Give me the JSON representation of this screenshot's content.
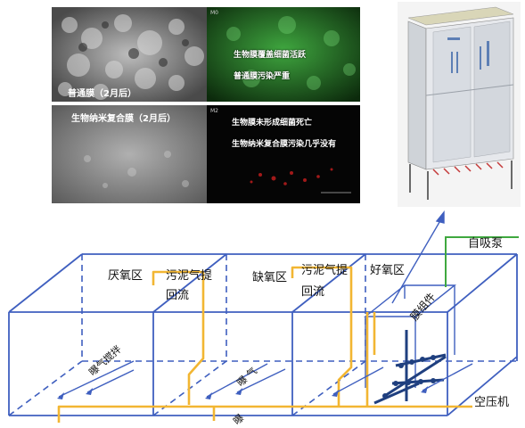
{
  "panels": {
    "sem_top": {
      "caption": "普通膜（2月后）"
    },
    "fluor_top": {
      "tag": "M0",
      "lines": [
        "生物膜覆盖细菌活跃",
        "普通膜污染严重"
      ]
    },
    "sem_bottom": {
      "caption": "生物纳米复合膜（2月后）"
    },
    "fluor_bottom": {
      "tag": "M2",
      "lines": [
        "生物膜未形成细菌死亡",
        "生物纳米复合膜污染几乎没有"
      ]
    }
  },
  "diagram": {
    "zones": [
      "厌氧区",
      "缺氧区",
      "好氧区"
    ],
    "reflux_labels": [
      {
        "line1": "污泥气提",
        "line2": "回流"
      },
      {
        "line1": "污泥气提",
        "line2": "回流"
      }
    ],
    "aeration_label_1": "曝气搅拌",
    "aeration_label_2": "曝 气",
    "aeration_label_3": "曝",
    "membrane_module": "膜组件",
    "pump": "自吸泵",
    "compressor": "空压机"
  },
  "colors": {
    "tank_line": "#3f5fbf",
    "air_line": "#f2b632",
    "pump_line": "#3fa83f",
    "membrane_frame": "#1f3f7f"
  }
}
